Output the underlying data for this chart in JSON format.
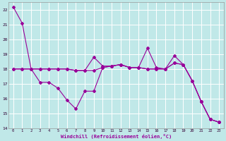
{
  "background_color": "#c0e8e8",
  "grid_color": "#aad4d4",
  "line_color": "#990099",
  "xlabel": "Windchill (Refroidissement éolien,°C)",
  "xlim": [
    -0.5,
    23.5
  ],
  "ylim": [
    14,
    22.5
  ],
  "yticks": [
    14,
    15,
    16,
    17,
    18,
    19,
    20,
    21,
    22
  ],
  "xticks": [
    0,
    1,
    2,
    3,
    4,
    5,
    6,
    7,
    8,
    9,
    10,
    11,
    12,
    13,
    14,
    15,
    16,
    17,
    18,
    19,
    20,
    21,
    22,
    23
  ],
  "line1_x": [
    0,
    1,
    2,
    3,
    4,
    5,
    6,
    7,
    8,
    9,
    10,
    11,
    12,
    13,
    14,
    15,
    16,
    17,
    18,
    19,
    20,
    21,
    22,
    23
  ],
  "line1_y": [
    22.2,
    21.1,
    18.0,
    18.0,
    18.0,
    18.0,
    18.0,
    17.9,
    17.9,
    18.8,
    18.2,
    18.2,
    18.3,
    18.1,
    18.1,
    18.0,
    18.0,
    18.0,
    18.4,
    18.3,
    17.2,
    15.8,
    14.6,
    14.4
  ],
  "line2_x": [
    0,
    1,
    2,
    3,
    4,
    5,
    6,
    7,
    8,
    9,
    10,
    11,
    12,
    13,
    14,
    15,
    16,
    17,
    18,
    19,
    20,
    21,
    22,
    23
  ],
  "line2_y": [
    18.0,
    18.0,
    18.0,
    18.0,
    18.0,
    18.0,
    18.0,
    17.9,
    17.9,
    17.9,
    18.1,
    18.2,
    18.3,
    18.1,
    18.1,
    18.0,
    18.0,
    18.0,
    18.4,
    18.3,
    17.2,
    15.8,
    14.6,
    14.4
  ],
  "line3_x": [
    0,
    1,
    2,
    3,
    4,
    5,
    6,
    7,
    8,
    9,
    10,
    11,
    12,
    13,
    14,
    15,
    16,
    17,
    18,
    19,
    20,
    21,
    22,
    23
  ],
  "line3_y": [
    18.0,
    18.0,
    18.0,
    17.1,
    17.1,
    16.7,
    15.9,
    15.3,
    16.5,
    16.5,
    18.1,
    18.2,
    18.3,
    18.1,
    18.1,
    19.4,
    18.1,
    18.0,
    18.9,
    18.3,
    17.2,
    15.8,
    14.6,
    14.4
  ],
  "markersize": 2.0,
  "linewidth": 0.8
}
